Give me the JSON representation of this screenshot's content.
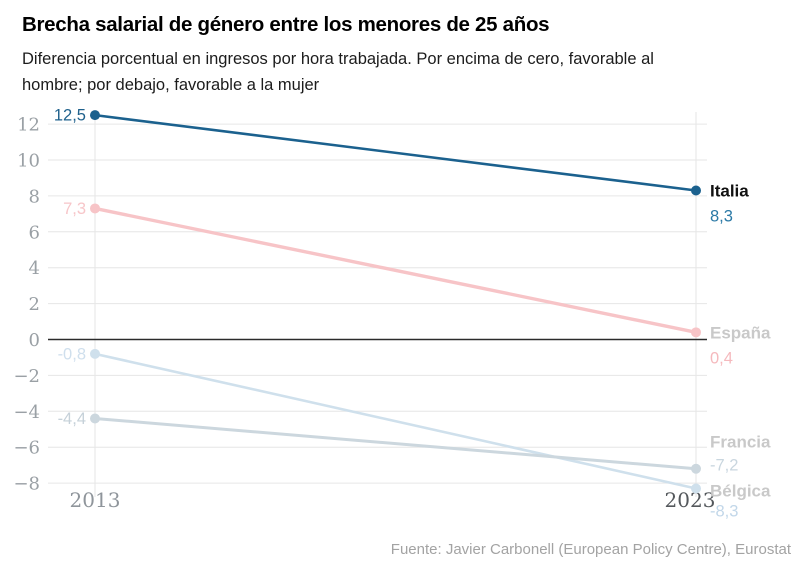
{
  "header": {
    "title": "Brecha salarial de género entre los menores de 25 años",
    "subtitle": "Diferencia porcentual en ingresos por hora trabajada. Por encima de cero, favorable al\nhombre; por debajo, favorable a la mujer"
  },
  "footer": {
    "source": "Fuente: Javier Carbonell (European Policy Centre), Eurostat"
  },
  "chart_data": {
    "type": "line",
    "title": "Brecha salarial de género entre los menores de 25 años",
    "xlabel": "",
    "ylabel": "Diferencia porcentual en ingresos por hora trabajada",
    "x_categories": [
      "2013",
      "2023"
    ],
    "x_label_colors": [
      "#8f959b",
      "#54585c"
    ],
    "ytick_values": [
      12,
      10,
      8,
      6,
      4,
      2,
      0,
      -2,
      -4,
      -6,
      -8
    ],
    "ytick_labels": [
      "12",
      "10",
      "8",
      "6",
      "4",
      "2",
      "0",
      "−2",
      "−4",
      "−6",
      "−8"
    ],
    "ylim": [
      -8.9,
      13.3
    ],
    "grid": true,
    "grid_color": "#e6e6e6",
    "zero_line": true,
    "zero_line_color": "#2b2b2b",
    "legend_position": "right-of-line-ends",
    "series": [
      {
        "id": "italia",
        "name": "Italia",
        "values": [
          12.5,
          8.3
        ],
        "value_labels": [
          "12,5",
          "8,3"
        ],
        "color": "#1b618e",
        "name_color": "#111111",
        "value_colors": [
          "#1f618c",
          "#2a79a6"
        ],
        "line_width": 2.6
      },
      {
        "id": "espana",
        "name": "España",
        "values": [
          7.3,
          0.4
        ],
        "value_labels": [
          "7,3",
          "0,4"
        ],
        "color": "#f7c4c7",
        "name_color": "#c9c9c9",
        "value_colors": [
          "#f7c6c9",
          "#f5b9bd"
        ],
        "line_width": 3.4
      },
      {
        "id": "francia",
        "name": "Francia",
        "values": [
          -4.4,
          -7.2
        ],
        "value_labels": [
          "-4,4",
          "-7,2"
        ],
        "color": "#ccd7de",
        "name_color": "#c9c9c9",
        "value_colors": [
          "#c6d1d9",
          "#c9d6df"
        ],
        "line_width": 3.0
      },
      {
        "id": "belgica",
        "name": "Bélgica",
        "values": [
          -0.8,
          -8.3
        ],
        "value_labels": [
          "-0,8",
          "-8,3"
        ],
        "color": "#cfe0ec",
        "name_color": "#c9c9c9",
        "value_colors": [
          "#cfdfed",
          "#c2d7e9"
        ],
        "line_width": 2.6
      }
    ]
  }
}
